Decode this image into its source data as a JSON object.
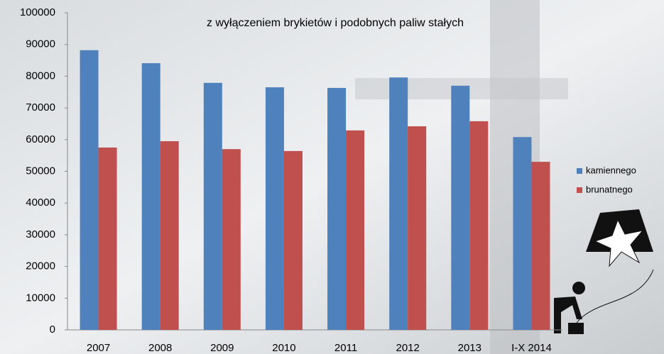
{
  "chart_data": {
    "type": "bar",
    "title": "z wyłączeniem brykietów i podobnych paliw stałych",
    "categories": [
      "2007",
      "2008",
      "2009",
      "2010",
      "2011",
      "2012",
      "2013",
      "I-X 2014"
    ],
    "series": [
      {
        "name": "kamiennego",
        "color": "#4f81bd",
        "values": [
          88200,
          84100,
          77900,
          76500,
          76300,
          79600,
          77000,
          60800
        ]
      },
      {
        "name": "brunatnego",
        "color": "#c0504d",
        "values": [
          57500,
          59500,
          57000,
          56400,
          62900,
          64200,
          65800,
          53000
        ]
      }
    ],
    "ylim": [
      0,
      100000
    ],
    "yticks": [
      0,
      10000,
      20000,
      30000,
      40000,
      50000,
      60000,
      70000,
      80000,
      90000,
      100000
    ],
    "grid": false,
    "legend": "right"
  }
}
